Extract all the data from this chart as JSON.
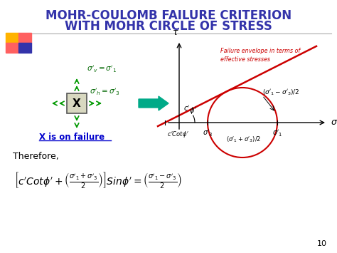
{
  "title_line1": "MOHR-COULOMB FAILURE CRITERION",
  "title_line2": "WITH MOHR CIRCLE OF STRESS",
  "title_color": "#3333AA",
  "bg_color": "#FFFFFF",
  "slide_number": "10",
  "arrow_color": "#00AA88",
  "envelope_color": "#CC0000",
  "circle_color": "#CC0000",
  "stress_arrow_color": "#009900",
  "text_green": "#006600",
  "failure_label_color": "#CC0000",
  "x_failure_color": "#0000CC"
}
